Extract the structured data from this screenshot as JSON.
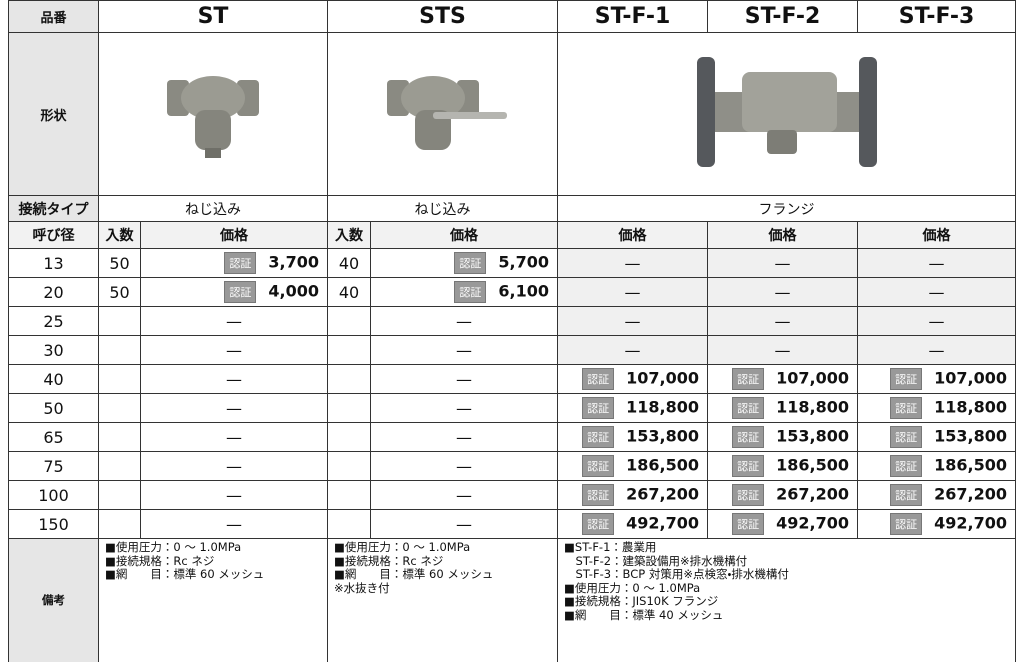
{
  "header": {
    "label": "品番",
    "models": [
      "ST",
      "STS",
      "ST-F-1",
      "ST-F-2",
      "ST-F-3"
    ]
  },
  "shape": {
    "label": "形状"
  },
  "connection": {
    "label": "接続タイプ",
    "types": [
      "ねじ込み",
      "ねじ込み",
      "フランジ"
    ]
  },
  "subheader": {
    "label": "呼び径",
    "columns": [
      "入数",
      "価格",
      "入数",
      "価格",
      "価格",
      "価格",
      "価格"
    ]
  },
  "badge": "認証",
  "rows": [
    {
      "size": 13,
      "cells": [
        50,
        "3,700",
        40,
        "5,700",
        "—",
        "—",
        "—"
      ]
    },
    {
      "size": 20,
      "cells": [
        50,
        "4,000",
        40,
        "6,100",
        "—",
        "—",
        "—"
      ]
    },
    {
      "size": 25,
      "cells": [
        null,
        "—",
        null,
        "—",
        "—",
        "—",
        "—"
      ]
    },
    {
      "size": 30,
      "cells": [
        null,
        "—",
        null,
        "—",
        "—",
        "—",
        "—"
      ]
    },
    {
      "size": 40,
      "cells": [
        null,
        "—",
        null,
        "—",
        "107,000",
        "107,000",
        "107,000"
      ]
    },
    {
      "size": 50,
      "cells": [
        null,
        "—",
        null,
        "—",
        "118,800",
        "118,800",
        "118,800"
      ]
    },
    {
      "size": 65,
      "cells": [
        null,
        "—",
        null,
        "—",
        "153,800",
        "153,800",
        "153,800"
      ]
    },
    {
      "size": 75,
      "cells": [
        null,
        "—",
        null,
        "—",
        "186,500",
        "186,500",
        "186,500"
      ]
    },
    {
      "size": 100,
      "cells": [
        null,
        "—",
        null,
        "—",
        "267,200",
        "267,200",
        "267,200"
      ]
    },
    {
      "size": 150,
      "cells": [
        null,
        "—",
        null,
        "—",
        "492,700",
        "492,700",
        "492,700"
      ]
    }
  ],
  "remarks": {
    "label": "備考",
    "notes": [
      [
        "■使用圧力：0 ～ 1.0MPa",
        "■接続規格：Rc ネジ",
        "■網　　目：標準 60 メッシュ"
      ],
      [
        "■使用圧力：0 ～ 1.0MPa",
        "■接続規格：Rc ネジ",
        "■網　　目：標準 60 メッシュ",
        "※水抜き付"
      ],
      [
        "■ST-F-1：農業用",
        "　ST-F-2：建築設備用※排水機構付",
        "　ST-F-3：BCP 対策用※点検窓・排水機構付",
        "■使用圧力：0 ～ 1.0MPa",
        "■接続規格：JIS10K フランジ",
        "■網　　目：標準 40 メッシュ"
      ]
    ]
  }
}
